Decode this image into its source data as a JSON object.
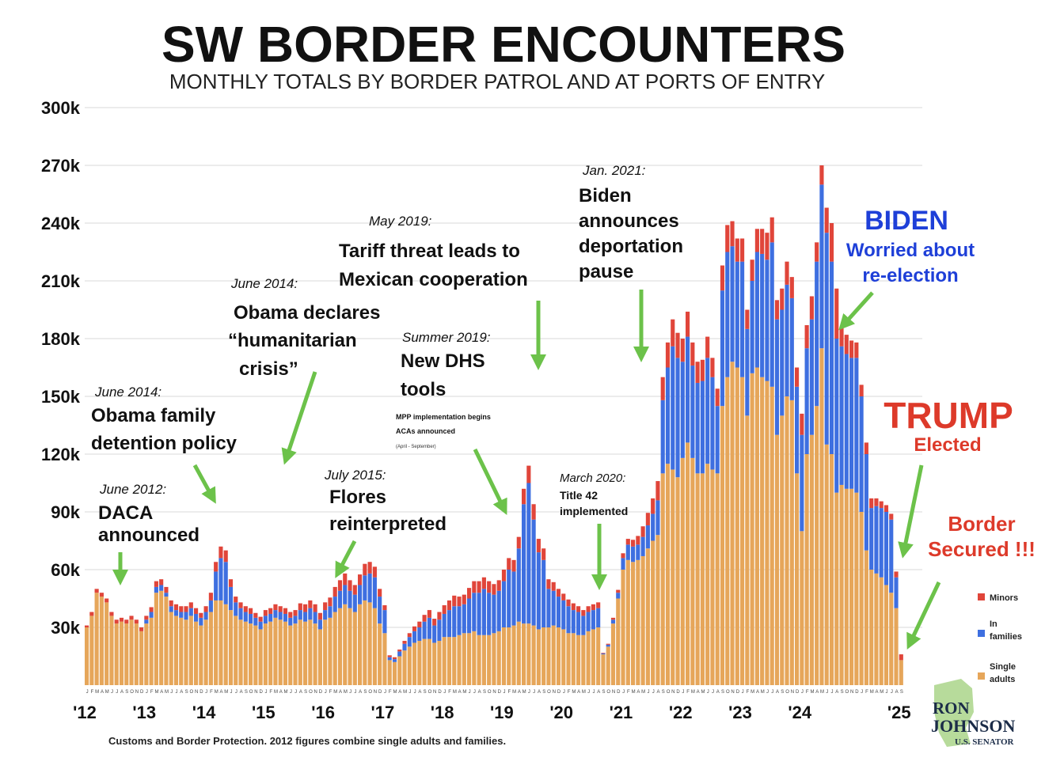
{
  "chart_data": {
    "type": "bar",
    "stacked": true,
    "title": "SW BORDER ENCOUNTERS",
    "subtitle": "MONTHLY TOTALS BY BORDER PATROL AND AT PORTS OF ENTRY",
    "y_ticks": [
      "300k",
      "270k",
      "240k",
      "210k",
      "180k",
      "150k",
      "120k",
      "90k",
      "60k",
      "30k"
    ],
    "y_tick_values": [
      300000,
      270000,
      240000,
      210000,
      180000,
      150000,
      120000,
      90000,
      60000,
      30000
    ],
    "ylim": [
      0,
      300000
    ],
    "grid": true,
    "x_tick_labels": [
      "'12",
      "'13",
      "'14",
      "'15",
      "'16",
      "'17",
      "'18",
      "'19",
      "'20",
      "'21",
      "'22",
      "'23",
      "'24",
      "'25"
    ],
    "month_letters": "JFMAMJJASOND",
    "x_start": "2012-01",
    "series": [
      {
        "name": "Single adults",
        "color": "#E6A65A",
        "values": [
          30000,
          36000,
          48000,
          46000,
          43000,
          36000,
          32000,
          33000,
          32000,
          34000,
          32000,
          28000,
          32000,
          35000,
          48000,
          49000,
          46000,
          38000,
          36000,
          35000,
          34000,
          36000,
          33000,
          31000,
          34000,
          38000,
          44000,
          44000,
          42000,
          39000,
          36000,
          34000,
          33000,
          32000,
          31000,
          29000,
          32000,
          33000,
          35000,
          34000,
          33000,
          31000,
          32000,
          34000,
          33000,
          34000,
          32000,
          29000,
          34000,
          35000,
          38000,
          40000,
          42000,
          40000,
          38000,
          42000,
          44000,
          43000,
          40000,
          32000,
          27000,
          13000,
          12000,
          15000,
          18000,
          20000,
          22000,
          23000,
          24000,
          24000,
          22000,
          23000,
          25000,
          25000,
          25000,
          26000,
          27000,
          27000,
          28000,
          26000,
          26000,
          26000,
          27000,
          28000,
          30000,
          30000,
          31000,
          33000,
          32000,
          32000,
          31000,
          29000,
          30000,
          30000,
          31000,
          30000,
          29000,
          27000,
          27000,
          26000,
          26000,
          28000,
          29000,
          30000,
          16000,
          20000,
          32000,
          45000,
          60000,
          65000,
          64000,
          65000,
          67000,
          71000,
          75000,
          78000,
          110000,
          115000,
          112000,
          108000,
          118000,
          126000,
          118000,
          110000,
          110000,
          115000,
          112000,
          110000,
          145000,
          160000,
          168000,
          165000,
          160000,
          140000,
          162000,
          165000,
          160000,
          158000,
          155000,
          130000,
          140000,
          150000,
          148000,
          110000,
          80000,
          120000,
          130000,
          145000,
          175000,
          125000,
          120000,
          100000,
          104000,
          102000,
          102000,
          100000,
          90000,
          70000,
          60000,
          58000,
          56000,
          52000,
          48000,
          40000,
          13000
        ],
        "display_colors_note": ""
      },
      {
        "name": "In families",
        "color": "#3E6FE0",
        "values": [
          0,
          0,
          0,
          0,
          0,
          0,
          0,
          0,
          0,
          0,
          0,
          0,
          2000,
          3000,
          3000,
          3000,
          2000,
          3000,
          3000,
          3000,
          4000,
          4000,
          4000,
          4000,
          4000,
          6000,
          15000,
          22000,
          22000,
          12000,
          7000,
          6000,
          5000,
          5000,
          4000,
          4000,
          4000,
          4000,
          4000,
          4000,
          4000,
          4000,
          4000,
          5000,
          5000,
          6000,
          6000,
          5000,
          5000,
          6000,
          8000,
          9000,
          10000,
          9000,
          9000,
          10000,
          13000,
          15000,
          16000,
          14000,
          12000,
          1500,
          1500,
          2500,
          3500,
          5000,
          6000,
          7000,
          9000,
          11000,
          9000,
          11000,
          12000,
          14000,
          16000,
          15000,
          15000,
          18000,
          20000,
          22000,
          24000,
          22000,
          20000,
          21000,
          24000,
          30000,
          28000,
          38000,
          62000,
          73000,
          55000,
          40000,
          35000,
          20000,
          18000,
          16000,
          15000,
          14000,
          12000,
          12000,
          10000,
          10000,
          10000,
          10000,
          500,
          1000,
          2000,
          3000,
          6000,
          8000,
          8000,
          8000,
          10000,
          12000,
          14000,
          18000,
          38000,
          50000,
          64000,
          62000,
          50000,
          55000,
          48000,
          47000,
          48000,
          55000,
          48000,
          35000,
          60000,
          65000,
          60000,
          55000,
          60000,
          45000,
          48000,
          60000,
          64000,
          63000,
          75000,
          60000,
          55000,
          58000,
          53000,
          45000,
          50000,
          55000,
          60000,
          75000,
          85000,
          110000,
          100000,
          80000,
          72000,
          70000,
          68000,
          70000,
          60000,
          50000,
          32000,
          35000,
          36000,
          38000,
          38000,
          16000,
          0
        ],
        "display_colors_note": ""
      },
      {
        "name": "Minors",
        "color": "#E0453A",
        "values": [
          1000,
          2000,
          2000,
          2000,
          2000,
          2000,
          2000,
          2000,
          2000,
          2000,
          2000,
          2000,
          2000,
          2500,
          3000,
          3000,
          3000,
          3000,
          3000,
          3000,
          3000,
          3000,
          3000,
          2500,
          3000,
          4000,
          5000,
          6000,
          6000,
          4000,
          3000,
          3000,
          3000,
          3000,
          2500,
          2500,
          3000,
          3000,
          3000,
          3000,
          3000,
          3000,
          3000,
          3500,
          4000,
          4000,
          4000,
          3500,
          4000,
          4500,
          5000,
          5500,
          6000,
          5500,
          5000,
          5500,
          6000,
          6000,
          5500,
          4000,
          2500,
          1000,
          1000,
          1000,
          1500,
          2000,
          2500,
          3000,
          3500,
          4000,
          3500,
          4000,
          4500,
          5000,
          5500,
          5000,
          5000,
          5500,
          6000,
          6000,
          6000,
          6000,
          5500,
          5500,
          6000,
          6000,
          6000,
          6000,
          8000,
          9000,
          8000,
          7000,
          6000,
          5000,
          4500,
          4000,
          3500,
          3500,
          3500,
          3000,
          3000,
          3000,
          3000,
          3000,
          300,
          500,
          1000,
          1500,
          2500,
          3000,
          3500,
          4500,
          5500,
          6500,
          8000,
          10000,
          12000,
          13000,
          14000,
          13000,
          12000,
          13000,
          12000,
          11000,
          11000,
          11000,
          10000,
          9000,
          13000,
          14000,
          13000,
          12000,
          12000,
          10000,
          11000,
          12000,
          13000,
          14000,
          13000,
          10000,
          11000,
          12000,
          11000,
          10000,
          11000,
          12000,
          12000,
          10000,
          10000,
          13000,
          20000,
          26000,
          10000,
          10000,
          9000,
          8000,
          6000,
          6000,
          5000,
          4000,
          3500,
          3500,
          3000,
          3000,
          3000,
          2000,
          1000
        ],
        "display_colors_note": ""
      }
    ]
  },
  "annotations": [
    {
      "date": "June 2012:",
      "lines": [
        "DACA",
        "announced"
      ]
    },
    {
      "date": "June 2014:",
      "lines": [
        "Obama family",
        "detention policy"
      ]
    },
    {
      "date": "June 2014:",
      "lines": [
        "Obama declares",
        "“humanitarian",
        "crisis”"
      ]
    },
    {
      "date": "July 2015:",
      "lines": [
        "Flores",
        "reinterpreted"
      ]
    },
    {
      "date": "May 2019:",
      "lines": [
        "Tariff threat leads to",
        "Mexican cooperation"
      ]
    },
    {
      "date": "Summer 2019:",
      "lines": [
        "New DHS",
        "tools"
      ],
      "small": [
        "MPP implementation begins",
        "ACAs announced",
        "(April - September)"
      ]
    },
    {
      "date": "March 2020:",
      "lines": [
        "Title 42",
        "implemented"
      ]
    },
    {
      "date": "Jan. 2021:",
      "lines": [
        "Biden",
        "announces",
        "deportation",
        "pause"
      ]
    }
  ],
  "biden": {
    "title": "BIDEN",
    "lines": [
      "Worried about",
      "re-election"
    ]
  },
  "trump": {
    "title": "TRUMP",
    "lines": [
      "Elected"
    ]
  },
  "border": {
    "lines": [
      "Border",
      "Secured !!!"
    ]
  },
  "legend": [
    {
      "lines": [
        "Minors"
      ],
      "color": "#E0453A"
    },
    {
      "lines": [
        "In",
        "families"
      ],
      "color": "#3E6FE0"
    },
    {
      "lines": [
        "Single",
        "adults"
      ],
      "color": "#E6A65A"
    }
  ],
  "source": "Customs and Border Protection. 2012 figures combine single adults and families.",
  "logo": {
    "line1": "RON",
    "line2": "JOHNSON",
    "line3": "U.S. SENATOR"
  },
  "colors": {
    "arrow": "#6CC24A",
    "biden": "#1E3FD8",
    "trump": "#DD3A2A",
    "grid": "#d8d8d8"
  }
}
